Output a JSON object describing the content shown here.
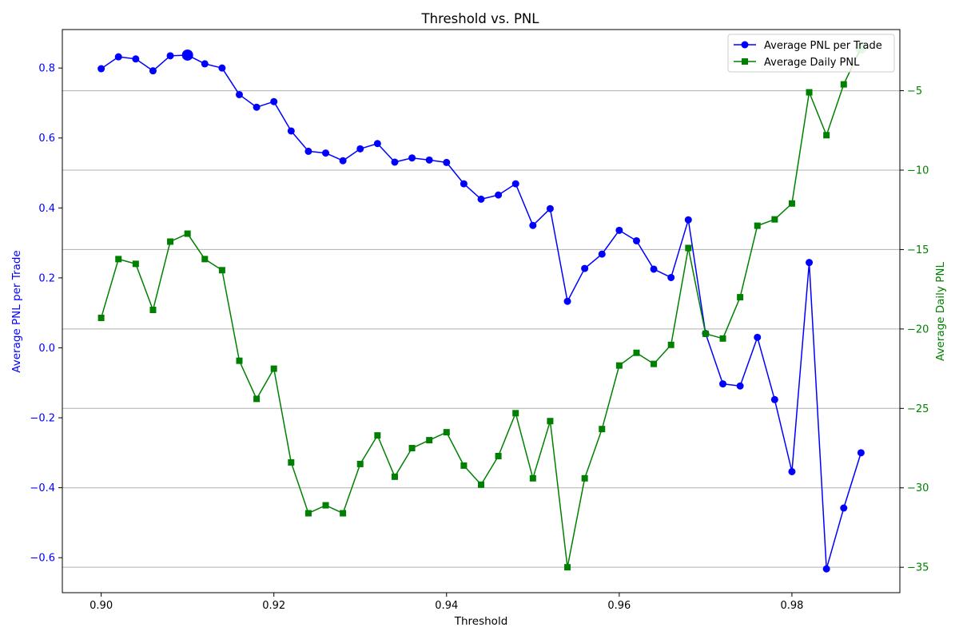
{
  "chart_data": {
    "type": "line",
    "title": "Threshold vs. PNL",
    "xlabel": "Threshold",
    "ylabel_left": "Average PNL per Trade",
    "ylabel_right": "Average Daily PNL",
    "xlim": [
      0.8955,
      0.9925
    ],
    "ylim_left": [
      -0.7,
      0.91
    ],
    "ylim_right": [
      -36.6,
      -1.15
    ],
    "x_ticks": [
      "0.90",
      "0.92",
      "0.94",
      "0.96",
      "0.98"
    ],
    "x_tick_values": [
      0.9,
      0.92,
      0.94,
      0.96,
      0.98
    ],
    "y_left_ticks": [
      "−0.6",
      "−0.4",
      "−0.2",
      "0.0",
      "0.2",
      "0.4",
      "0.6",
      "0.8"
    ],
    "y_left_tick_values": [
      -0.6,
      -0.4,
      -0.2,
      0.0,
      0.2,
      0.4,
      0.6,
      0.8
    ],
    "y_right_ticks": [
      "−35",
      "−30",
      "−25",
      "−20",
      "−15",
      "−10",
      "−5"
    ],
    "y_right_tick_values": [
      -35,
      -30,
      -25,
      -20,
      -15,
      -10,
      -5
    ],
    "grid": "horizontal lines at right-axis ticks",
    "legend_position": "top-right",
    "x": [
      0.9,
      0.902,
      0.904,
      0.906,
      0.908,
      0.91,
      0.912,
      0.914,
      0.916,
      0.918,
      0.92,
      0.922,
      0.924,
      0.926,
      0.928,
      0.93,
      0.932,
      0.934,
      0.936,
      0.938,
      0.94,
      0.942,
      0.944,
      0.946,
      0.948,
      0.95,
      0.952,
      0.954,
      0.956,
      0.958,
      0.96,
      0.962,
      0.964,
      0.966,
      0.968,
      0.97,
      0.972,
      0.974,
      0.976,
      0.978,
      0.98,
      0.982,
      0.984,
      0.986,
      0.988
    ],
    "series": [
      {
        "name": "Average PNL per Trade",
        "axis": "left",
        "color": "#0000ff",
        "marker": "circle",
        "values": [
          0.798,
          0.832,
          0.826,
          0.792,
          0.835,
          0.837,
          0.812,
          0.8,
          0.724,
          0.688,
          0.704,
          0.62,
          0.562,
          0.557,
          0.535,
          0.569,
          0.584,
          0.531,
          0.543,
          0.537,
          0.53,
          0.469,
          0.425,
          0.437,
          0.469,
          0.35,
          0.398,
          0.133,
          0.227,
          0.268,
          0.336,
          0.306,
          0.225,
          0.201,
          0.366,
          0.041,
          -0.103,
          -0.109,
          0.03,
          -0.148,
          -0.354,
          0.244,
          -0.632,
          -0.458,
          -0.3
        ],
        "highlight_index": 5
      },
      {
        "name": "Average Daily PNL",
        "axis": "right",
        "color": "#008000",
        "marker": "square",
        "values": [
          -19.3,
          -15.6,
          -15.9,
          -18.8,
          -14.5,
          -14.0,
          -15.6,
          -16.3,
          -22.0,
          -24.4,
          -22.5,
          -28.4,
          -31.6,
          -31.1,
          -31.6,
          -28.5,
          -26.7,
          -29.3,
          -27.5,
          -27.0,
          -26.5,
          -28.6,
          -29.8,
          -28.0,
          -25.3,
          -29.4,
          -25.8,
          -35.0,
          -29.4,
          -26.3,
          -22.3,
          -21.5,
          -22.2,
          -21.0,
          -14.9,
          -20.3,
          -20.6,
          -18.0,
          -13.5,
          -13.1,
          -12.1,
          -5.1,
          -7.8,
          -4.6,
          -2.3
        ],
        "highlight_index": 44
      }
    ]
  }
}
